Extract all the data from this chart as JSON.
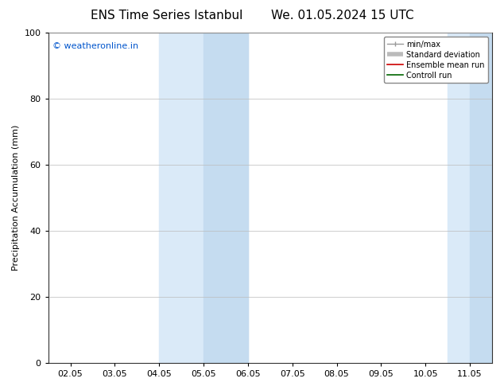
{
  "title_left": "ENS Time Series Istanbul",
  "title_right": "We. 01.05.2024 15 UTC",
  "ylabel": "Precipitation Accumulation (mm)",
  "watermark": "© weatheronline.in",
  "watermark_color": "#0055cc",
  "ylim": [
    0,
    100
  ],
  "yticks": [
    0,
    20,
    40,
    60,
    80,
    100
  ],
  "xtick_labels": [
    "02.05",
    "03.05",
    "04.05",
    "05.05",
    "06.05",
    "07.05",
    "08.05",
    "09.05",
    "10.05",
    "11.05"
  ],
  "background_color": "#ffffff",
  "plot_bg_color": "#ffffff",
  "band1_outer_color": "#daeaf8",
  "band1_inner_color": "#c5dcf0",
  "band2_outer_color": "#daeaf8",
  "band2_inner_color": "#c5dcf0",
  "legend_labels": [
    "min/max",
    "Standard deviation",
    "Ensemble mean run",
    "Controll run"
  ],
  "legend_line_color": "#888888",
  "legend_std_color": "#cccccc",
  "legend_ens_color": "#cc0000",
  "legend_ctrl_color": "#006600",
  "title_fontsize": 11,
  "axis_fontsize": 8,
  "tick_fontsize": 8
}
